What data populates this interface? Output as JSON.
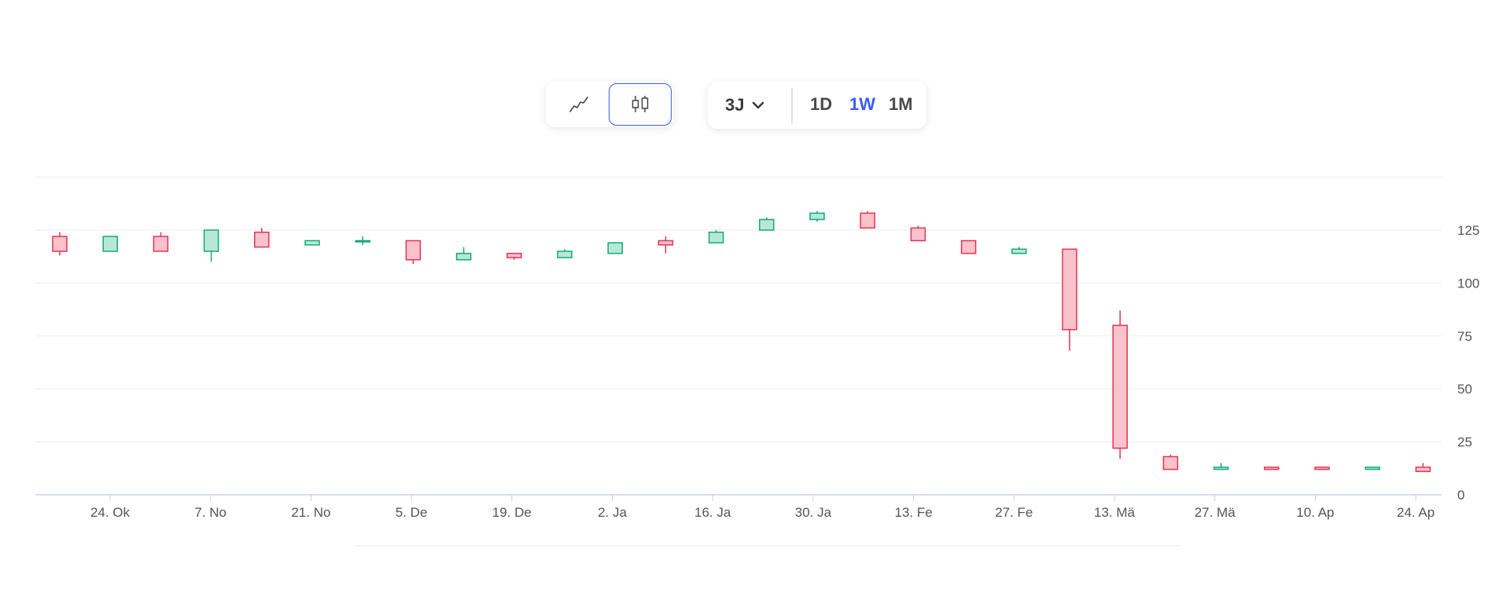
{
  "toolbar": {
    "chart_types": [
      {
        "icon": "line-chart-icon",
        "selected": false
      },
      {
        "icon": "candlestick-chart-icon",
        "selected": true
      }
    ],
    "range": {
      "label": "3J",
      "icon": "chevron-down-icon"
    },
    "intervals": [
      {
        "label": "1D",
        "active": false
      },
      {
        "label": "1W",
        "active": true
      },
      {
        "label": "1M",
        "active": false
      }
    ],
    "accent_color": "#3b5bff"
  },
  "chart_data": {
    "type": "candlestick",
    "colors": {
      "up_fill": "#b7e8d6",
      "up_stroke": "#13a97a",
      "down_fill": "#f9c2cc",
      "down_stroke": "#e5334f"
    },
    "grid": true,
    "y_axis": {
      "position": "right",
      "ylim": [
        0,
        150
      ],
      "ticks": [
        "0",
        "25",
        "50",
        "75",
        "100",
        "125"
      ]
    },
    "x_tick_labels": [
      "24. Ok",
      "7. No",
      "21. No",
      "5. De",
      "19. De",
      "2. Ja",
      "16. Ja",
      "30. Ja",
      "13. Fe",
      "27. Fe",
      "13. Mä",
      "27. Mä",
      "10. Ap",
      "24. Ap"
    ],
    "candles": [
      {
        "open": 122,
        "high": 124,
        "low": 113,
        "close": 115
      },
      {
        "open": 115,
        "high": 122,
        "low": 115,
        "close": 122
      },
      {
        "open": 122,
        "high": 124,
        "low": 115,
        "close": 115
      },
      {
        "open": 115,
        "high": 125,
        "low": 110,
        "close": 125
      },
      {
        "open": 124,
        "high": 126,
        "low": 117,
        "close": 117
      },
      {
        "open": 118,
        "high": 120,
        "low": 118,
        "close": 120
      },
      {
        "open": 120,
        "high": 122,
        "low": 118,
        "close": 120
      },
      {
        "open": 120,
        "high": 120,
        "low": 109,
        "close": 111
      },
      {
        "open": 111,
        "high": 117,
        "low": 111,
        "close": 114
      },
      {
        "open": 114,
        "high": 114,
        "low": 111,
        "close": 112
      },
      {
        "open": 112,
        "high": 116,
        "low": 112,
        "close": 115
      },
      {
        "open": 114,
        "high": 119,
        "low": 114,
        "close": 119
      },
      {
        "open": 120,
        "high": 122,
        "low": 114,
        "close": 118
      },
      {
        "open": 119,
        "high": 125,
        "low": 119,
        "close": 124
      },
      {
        "open": 125,
        "high": 131,
        "low": 125,
        "close": 130
      },
      {
        "open": 130,
        "high": 134,
        "low": 129,
        "close": 133
      },
      {
        "open": 133,
        "high": 134,
        "low": 126,
        "close": 126
      },
      {
        "open": 126,
        "high": 127,
        "low": 120,
        "close": 120
      },
      {
        "open": 120,
        "high": 120,
        "low": 114,
        "close": 114
      },
      {
        "open": 114,
        "high": 117,
        "low": 114,
        "close": 116
      },
      {
        "open": 116,
        "high": 116,
        "low": 68,
        "close": 78
      },
      {
        "open": 80,
        "high": 87,
        "low": 17,
        "close": 22
      },
      {
        "open": 18,
        "high": 19,
        "low": 12,
        "close": 12
      },
      {
        "open": 12,
        "high": 15,
        "low": 12,
        "close": 13
      },
      {
        "open": 13,
        "high": 13,
        "low": 12,
        "close": 12
      },
      {
        "open": 13,
        "high": 13,
        "low": 12,
        "close": 12
      },
      {
        "open": 12,
        "high": 13,
        "low": 12,
        "close": 13
      },
      {
        "open": 13,
        "high": 15,
        "low": 11,
        "close": 11
      }
    ]
  }
}
